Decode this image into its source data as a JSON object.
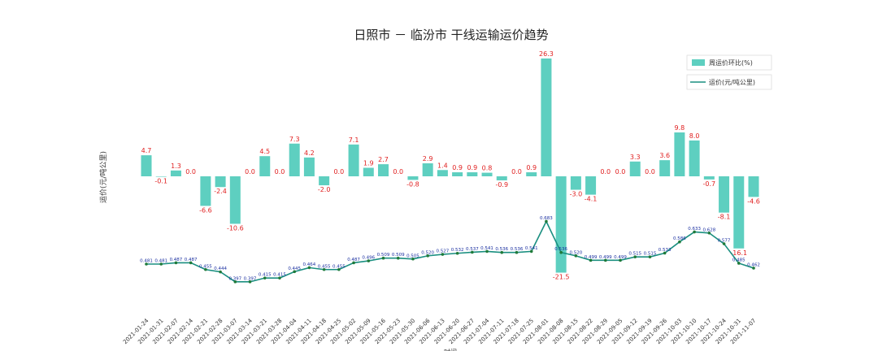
{
  "chart_data": {
    "type": "bar",
    "title": "日照市 － 临汾市 干线运输运价趋势",
    "xlabel": "时间",
    "ylabel": "运价(元/吨公里)",
    "legend_placement": "top-right",
    "categories": [
      "2021-01-24",
      "2021-01-31",
      "2021-02-07",
      "2021-02-14",
      "2021-02-21",
      "2021-02-28",
      "2021-03-07",
      "2021-03-14",
      "2021-03-21",
      "2021-03-28",
      "2021-04-04",
      "2021-04-11",
      "2021-04-18",
      "2021-04-25",
      "2021-05-02",
      "2021-05-09",
      "2021-05-16",
      "2021-05-23",
      "2021-05-30",
      "2021-06-06",
      "2021-06-13",
      "2021-06-20",
      "2021-06-27",
      "2021-07-04",
      "2021-07-11",
      "2021-07-18",
      "2021-07-25",
      "2021-08-01",
      "2021-08-08",
      "2021-08-15",
      "2021-08-22",
      "2021-08-29",
      "2021-09-05",
      "2021-09-12",
      "2021-09-19",
      "2021-09-26",
      "2021-10-03",
      "2021-10-10",
      "2021-10-17",
      "2021-10-24",
      "2021-10-31",
      "2021-11-07"
    ],
    "series": [
      {
        "name": "周运价环比(%)",
        "type": "bar",
        "color": "#5ecfc0",
        "values": [
          4.7,
          -0.1,
          1.3,
          0.0,
          -6.6,
          -2.4,
          -10.6,
          0.0,
          4.5,
          0.0,
          7.3,
          4.2,
          -2.0,
          0.0,
          7.1,
          1.9,
          2.7,
          0.0,
          -0.8,
          2.9,
          1.4,
          0.9,
          0.9,
          0.8,
          -0.9,
          0.0,
          0.9,
          26.3,
          -21.5,
          -3.0,
          -4.1,
          0.0,
          0.0,
          3.3,
          0.0,
          3.6,
          9.8,
          8.0,
          -0.7,
          -8.1,
          -16.1,
          -4.6
        ]
      },
      {
        "name": "运价(元/吨公里)",
        "type": "line",
        "color": "#1a8f80",
        "values": [
          0.481,
          0.481,
          0.487,
          0.487,
          0.455,
          0.444,
          0.397,
          0.397,
          0.415,
          0.415,
          0.445,
          0.464,
          0.455,
          0.455,
          0.487,
          0.496,
          0.509,
          0.509,
          0.505,
          0.52,
          0.527,
          0.532,
          0.537,
          0.541,
          0.536,
          0.536,
          0.541,
          0.683,
          0.536,
          0.52,
          0.499,
          0.499,
          0.499,
          0.515,
          0.515,
          0.533,
          0.586,
          0.633,
          0.628,
          0.577,
          0.485,
          0.462
        ]
      }
    ]
  }
}
